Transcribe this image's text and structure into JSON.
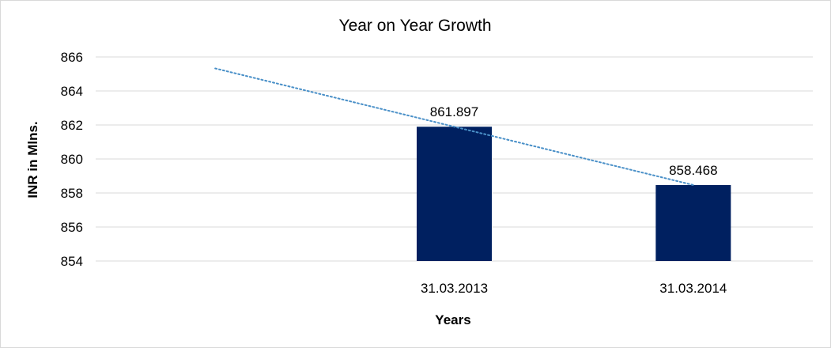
{
  "chart_data": {
    "type": "bar",
    "title": "Year on Year Growth",
    "xlabel": "Years",
    "ylabel": "INR in Mlns.",
    "categories": [
      "",
      "31.03.2013",
      "31.03.2014"
    ],
    "values": [
      null,
      861.897,
      858.468
    ],
    "data_labels": [
      "",
      "861.897",
      "858.468"
    ],
    "ylim": [
      854,
      866
    ],
    "yticks": [
      "854",
      "856",
      "858",
      "860",
      "862",
      "864",
      "866"
    ],
    "bar_color": "#002060",
    "trendline": {
      "type": "linear",
      "style": "dotted",
      "color": "#4a90c8"
    },
    "grid": true,
    "legend": "none"
  }
}
